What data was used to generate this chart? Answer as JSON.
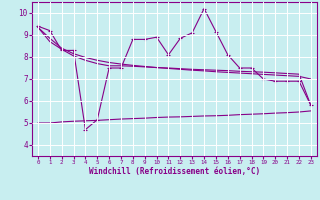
{
  "xlabel": "Windchill (Refroidissement éolien,°C)",
  "xlim": [
    -0.5,
    23.5
  ],
  "ylim": [
    3.5,
    10.5
  ],
  "yticks": [
    4,
    5,
    6,
    7,
    8,
    9,
    10
  ],
  "xticks": [
    0,
    1,
    2,
    3,
    4,
    5,
    6,
    7,
    8,
    9,
    10,
    11,
    12,
    13,
    14,
    15,
    16,
    17,
    18,
    19,
    20,
    21,
    22,
    23
  ],
  "bg_color": "#c8eef0",
  "line_color": "#880088",
  "grid_color": "#ffffff",
  "line1_x": [
    0,
    1,
    2,
    3,
    4,
    5,
    6,
    7,
    8,
    9,
    10,
    11,
    12,
    13,
    14,
    15,
    16,
    17,
    18,
    19,
    20,
    21,
    22,
    23
  ],
  "line1_y": [
    9.4,
    9.2,
    8.3,
    8.3,
    4.7,
    5.15,
    7.5,
    7.5,
    8.8,
    8.8,
    8.9,
    8.1,
    8.85,
    9.1,
    10.2,
    9.15,
    8.1,
    7.5,
    7.5,
    7.0,
    6.9,
    6.9,
    6.9,
    5.8
  ],
  "line2_x": [
    0,
    1,
    2,
    3,
    4,
    5,
    6,
    7,
    8,
    9,
    10,
    11,
    12,
    13,
    14,
    15,
    16,
    17,
    18,
    19,
    20,
    21,
    22,
    23
  ],
  "line2_y": [
    9.35,
    8.85,
    8.4,
    8.15,
    7.98,
    7.85,
    7.75,
    7.68,
    7.62,
    7.57,
    7.52,
    7.48,
    7.44,
    7.4,
    7.37,
    7.33,
    7.3,
    7.27,
    7.24,
    7.21,
    7.18,
    7.15,
    7.12,
    7.0
  ],
  "line3_x": [
    0,
    1,
    2,
    3,
    4,
    5,
    6,
    7,
    8,
    9,
    10,
    11,
    12,
    13,
    14,
    15,
    16,
    17,
    18,
    19,
    20,
    21,
    22,
    23
  ],
  "line3_y": [
    9.35,
    8.7,
    8.35,
    8.05,
    7.85,
    7.7,
    7.6,
    7.6,
    7.58,
    7.55,
    7.52,
    7.5,
    7.47,
    7.44,
    7.42,
    7.4,
    7.38,
    7.35,
    7.33,
    7.31,
    7.28,
    7.25,
    7.22,
    5.8
  ],
  "line4_x": [
    0,
    1,
    2,
    3,
    4,
    5,
    6,
    7,
    8,
    9,
    10,
    11,
    12,
    13,
    14,
    15,
    16,
    17,
    18,
    19,
    20,
    21,
    22,
    23
  ],
  "line4_y": [
    5.0,
    5.0,
    5.05,
    5.08,
    5.1,
    5.12,
    5.15,
    5.18,
    5.2,
    5.22,
    5.25,
    5.27,
    5.28,
    5.3,
    5.32,
    5.33,
    5.35,
    5.38,
    5.4,
    5.42,
    5.45,
    5.47,
    5.5,
    5.55
  ]
}
